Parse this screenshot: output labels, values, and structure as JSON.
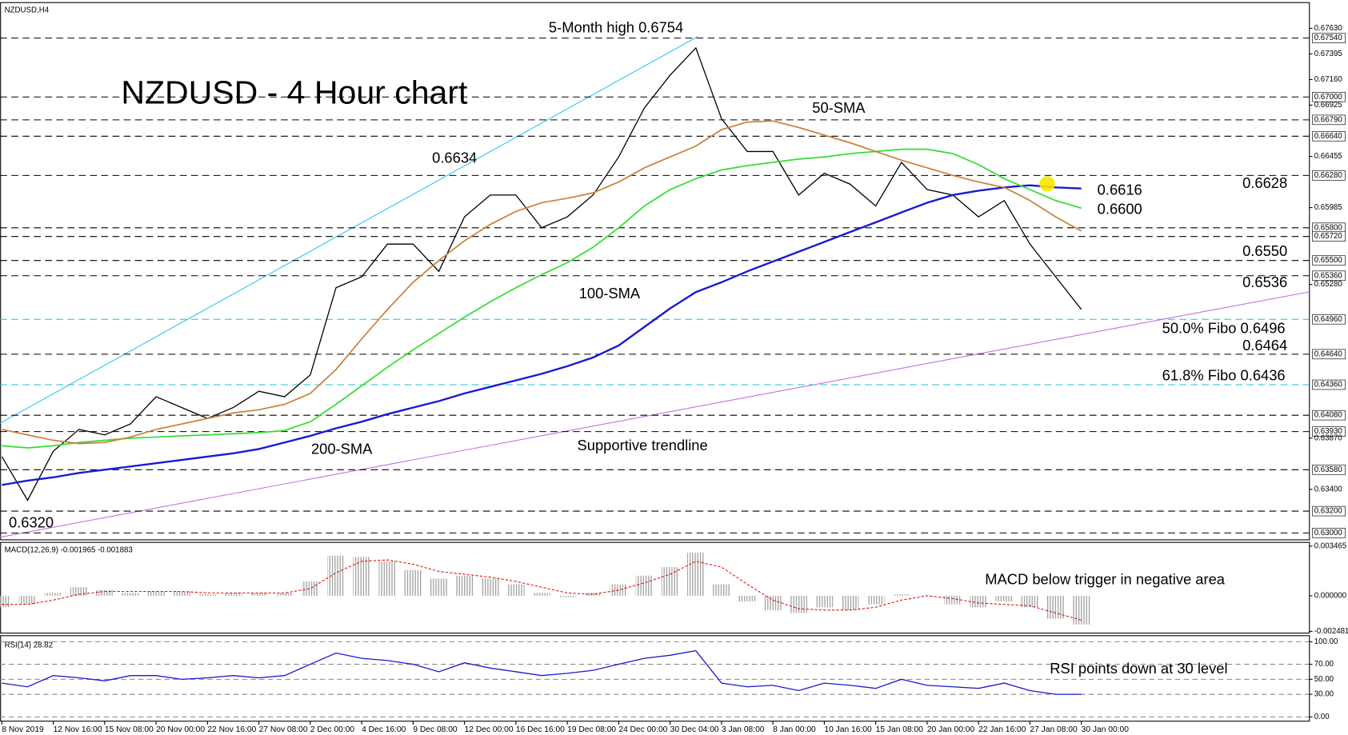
{
  "chart_data": [
    {
      "type": "line",
      "title": "NZDUSD,H4",
      "subtitle": "NZDUSD - 4 Hour chart",
      "categories": [
        "8 Nov 2019",
        null,
        "12 Nov 16:00",
        null,
        "15 Nov 08:00",
        null,
        "20 Nov 00:00",
        null,
        "22 Nov 16:00",
        null,
        "27 Nov 08:00",
        null,
        "2 Dec 00:00",
        null,
        "4 Dec 16:00",
        null,
        "9 Dec 08:00",
        null,
        "12 Dec 00:00",
        null,
        "16 Dec 16:00",
        null,
        "19 Dec 08:00",
        null,
        "24 Dec 00:00",
        null,
        "30 Dec 04:00",
        null,
        "3 Jan 08:00",
        null,
        "8 Jan 00:00",
        null,
        "10 Jan 16:00",
        null,
        "15 Jan 08:00",
        null,
        "20 Jan 00:00",
        null,
        "22 Jan 16:00",
        null,
        "27 Jan 08:00",
        null,
        "30 Jan 00:00",
        null
      ],
      "series": [
        {
          "color": "#000000",
          "values": [
            0.637,
            0.633,
            0.6375,
            0.6395,
            0.639,
            0.64,
            0.6425,
            0.6415,
            0.6405,
            0.6415,
            0.643,
            0.6425,
            0.6445,
            0.6525,
            0.6535,
            0.6565,
            0.6565,
            0.654,
            0.659,
            0.661,
            0.661,
            0.658,
            0.659,
            0.661,
            0.6645,
            0.669,
            0.672,
            0.6745,
            0.668,
            0.665,
            0.665,
            0.661,
            0.663,
            0.662,
            0.66,
            0.664,
            0.6615,
            0.661,
            0.659,
            0.6605,
            0.6565,
            0.6535,
            0.6505,
            null
          ]
        },
        {
          "name": "200-SMA",
          "color": "#1a1ad0",
          "values": [
            0.6344,
            0.6348,
            0.6351,
            0.6355,
            0.6358,
            0.6361,
            0.6364,
            0.6367,
            0.637,
            0.6373,
            0.6377,
            0.6383,
            0.6389,
            0.6396,
            0.6402,
            0.6409,
            0.6415,
            0.6421,
            0.6428,
            0.6434,
            0.644,
            0.6446,
            0.6453,
            0.6461,
            0.6472,
            0.6489,
            0.6506,
            0.6521,
            0.653,
            0.654,
            0.6549,
            0.6558,
            0.6567,
            0.6576,
            0.6585,
            0.6594,
            0.6603,
            0.661,
            0.6614,
            0.6617,
            0.6619,
            0.6617,
            0.6616,
            null
          ]
        },
        {
          "name": "100-SMA",
          "color": "#33dd33",
          "values": [
            0.638,
            0.6378,
            0.638,
            0.6383,
            0.6385,
            0.6387,
            0.6388,
            0.6389,
            0.639,
            0.6391,
            0.6392,
            0.6394,
            0.6402,
            0.6418,
            0.6435,
            0.6452,
            0.6468,
            0.6483,
            0.6498,
            0.6512,
            0.6525,
            0.6537,
            0.6548,
            0.6562,
            0.658,
            0.66,
            0.6615,
            0.6625,
            0.6633,
            0.6637,
            0.664,
            0.6643,
            0.6645,
            0.6648,
            0.665,
            0.6652,
            0.6652,
            0.6648,
            0.6638,
            0.6625,
            0.6615,
            0.6605,
            0.6598,
            null
          ]
        },
        {
          "name": "50-SMA",
          "color": "#c8823c",
          "values": [
            0.6395,
            0.639,
            0.6385,
            0.6382,
            0.6383,
            0.6388,
            0.6395,
            0.64,
            0.6405,
            0.641,
            0.6413,
            0.6418,
            0.6428,
            0.645,
            0.6478,
            0.6505,
            0.653,
            0.655,
            0.6568,
            0.6583,
            0.6595,
            0.6603,
            0.6607,
            0.6612,
            0.6622,
            0.6635,
            0.6645,
            0.6655,
            0.667,
            0.6677,
            0.6678,
            0.6672,
            0.6665,
            0.6658,
            0.665,
            0.6642,
            0.6635,
            0.6628,
            0.6622,
            0.6617,
            0.6605,
            0.659,
            0.6577,
            null
          ]
        }
      ],
      "ylim": [
        0.62937,
        0.6785
      ],
      "yticks": [
        {
          "value": 0.6763,
          "label": "0.67630"
        },
        {
          "value": 0.67395,
          "label": "0.67395"
        },
        {
          "value": 0.6716,
          "label": "0.67160"
        },
        {
          "value": 0.66925,
          "label": "0.66925"
        },
        {
          "value": 0.66455,
          "label": "0.66455"
        },
        {
          "value": 0.65985,
          "label": "0.65985"
        },
        {
          "value": 0.6528,
          "label": "0.65280"
        },
        {
          "value": 0.6387,
          "label": "0.63870"
        },
        {
          "value": 0.634,
          "label": "0.63400"
        }
      ],
      "levels": [
        {
          "value": 0.6754,
          "label": "0.67540",
          "color": "#000000"
        },
        {
          "value": 0.67,
          "label": "0.67000",
          "color": "#000000"
        },
        {
          "value": 0.6679,
          "label": "0.66790",
          "color": "#000000"
        },
        {
          "value": 0.6664,
          "label": "0.66640",
          "color": "#000000"
        },
        {
          "value": 0.6628,
          "label": "0.66280",
          "color": "#000000"
        },
        {
          "value": 0.658,
          "label": "0.65800",
          "color": "#000000"
        },
        {
          "value": 0.6572,
          "label": "0.65720",
          "color": "#000000"
        },
        {
          "value": 0.655,
          "label": "0.65500",
          "color": "#000000"
        },
        {
          "value": 0.6536,
          "label": "0.65360",
          "color": "#000000"
        },
        {
          "value": 0.6496,
          "label": "0.64960",
          "color": "#20c0d0"
        },
        {
          "value": 0.6464,
          "label": "0.64640",
          "color": "#000000"
        },
        {
          "value": 0.6436,
          "label": "0.64360",
          "color": "#20c0d0"
        },
        {
          "value": 0.6408,
          "label": "0.64080",
          "color": "#000000"
        },
        {
          "value": 0.6393,
          "label": "0.63930",
          "color": "#000000"
        },
        {
          "value": 0.6358,
          "label": "0.63580",
          "color": "#000000"
        },
        {
          "value": 0.632,
          "label": "0.63200",
          "color": "#000000"
        },
        {
          "value": 0.63,
          "label": "0.63000",
          "color": "#000000"
        }
      ],
      "annotations": [
        {
          "text": "5-Month high 0.6754",
          "color": "#000000"
        },
        {
          "text": "0.6634",
          "color": "#000000"
        },
        {
          "text": "0.6320",
          "color": "#000000"
        },
        {
          "text": "0.6616",
          "color": "#1a1ad0"
        },
        {
          "text": "0.6600",
          "color": "#33cc33"
        },
        {
          "text": "Supportive trendline",
          "color": "#b040d0"
        },
        {
          "text": "0.6628",
          "color": "#1a1ad0"
        },
        {
          "text": "0.6550",
          "color": "#1a1ad0"
        },
        {
          "text": "0.6536",
          "color": "#1a1ad0"
        },
        {
          "text": "50.0% Fibo 0.6496",
          "color": "#20b0c0"
        },
        {
          "text": "0.6464",
          "color": "#e01010"
        },
        {
          "text": "61.8% Fibo 0.6436",
          "color": "#20b0c0"
        }
      ]
    },
    {
      "type": "bar",
      "title": "MACD(12,26,9) -0.001965 -0.001883",
      "series": [
        {
          "type": "bar",
          "color": "#a0a0a0",
          "values": [
            -0.0008,
            -0.0006,
            0.0002,
            0.0006,
            0.0004,
            0.0002,
            0.0003,
            0.0003,
            0.0001,
            0.0002,
            0.0002,
            0.0002,
            0.001,
            0.0028,
            0.0027,
            0.0024,
            0.0018,
            0.0012,
            0.0014,
            0.0012,
            0.0008,
            0.0002,
            -0.0001,
            0.0002,
            0.0008,
            0.0014,
            0.002,
            0.003,
            0.0008,
            -0.0004,
            -0.001,
            -0.0012,
            -0.0008,
            -0.001,
            -0.0006,
            0.0001,
            0.0,
            -0.0006,
            -0.0008,
            -0.0004,
            -0.0008,
            -0.0016,
            -0.002,
            null
          ]
        },
        {
          "type": "line",
          "color": "#e01010",
          "values": [
            -0.0006,
            -0.0006,
            -0.0003,
            0.0001,
            0.0003,
            0.0003,
            0.0003,
            0.0003,
            0.0002,
            0.0002,
            0.0002,
            0.0002,
            0.0005,
            0.0016,
            0.0024,
            0.0025,
            0.0022,
            0.0017,
            0.0015,
            0.0013,
            0.001,
            0.0006,
            0.0002,
            0.0001,
            0.0004,
            0.0009,
            0.0015,
            0.0024,
            0.002,
            0.0008,
            -0.0003,
            -0.0009,
            -0.001,
            -0.001,
            -0.0008,
            -0.0003,
            0.0,
            -0.0002,
            -0.0005,
            -0.0006,
            -0.0007,
            -0.0012,
            -0.0017,
            null
          ]
        }
      ],
      "ylim": [
        -0.0026,
        0.0036
      ],
      "yticks": [
        0.003465,
        {
          "value": 0,
          "label": "0.000000"
        },
        -0.002481
      ],
      "annotations": [
        {
          "text": "MACD below trigger in negative area",
          "color": "#000000"
        }
      ]
    },
    {
      "type": "line",
      "title": "RSI(14) 28.82",
      "series": [
        {
          "color": "#1a1ad0",
          "values": [
            45,
            40,
            55,
            52,
            48,
            55,
            55,
            50,
            52,
            55,
            52,
            55,
            70,
            85,
            78,
            75,
            70,
            60,
            72,
            65,
            60,
            55,
            58,
            62,
            70,
            78,
            82,
            88,
            45,
            40,
            42,
            35,
            45,
            42,
            38,
            50,
            42,
            40,
            38,
            45,
            35,
            30,
            30,
            null
          ]
        }
      ],
      "ylim": [
        -5.7,
        106.9
      ],
      "yticks": [
        {
          "value": 100,
          "label": "100.00"
        },
        {
          "value": 70,
          "label": "70.00"
        },
        {
          "value": 50,
          "label": "50.00"
        },
        {
          "value": 30,
          "label": "30.00"
        },
        {
          "value": 0,
          "label": "0.00"
        }
      ],
      "annotations": [
        {
          "text": "RSI points down at 30 level",
          "color": "#000000"
        }
      ]
    }
  ]
}
